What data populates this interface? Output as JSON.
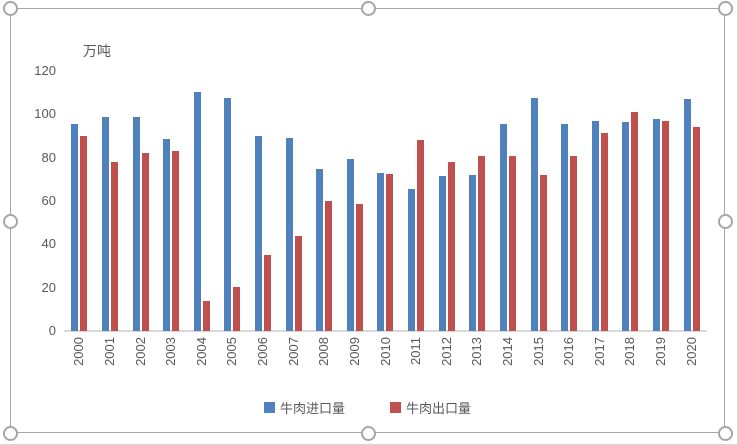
{
  "chart": {
    "unit_label": "万吨",
    "y_ticks": [
      120,
      100,
      80,
      60,
      40,
      20,
      0
    ],
    "colors": {
      "import_bar": "#4F81BD",
      "export_bar": "#C0504D",
      "text": "#595959",
      "frame_border": "#A6A6A6",
      "baseline": "#D9D9D9"
    }
  },
  "chart_data": {
    "type": "bar",
    "title": "",
    "xlabel": "",
    "ylabel": "万吨",
    "ylim": [
      0,
      120
    ],
    "grid": false,
    "legend_position": "bottom",
    "categories": [
      "2000",
      "2001",
      "2002",
      "2003",
      "2004",
      "2005",
      "2006",
      "2007",
      "2008",
      "2009",
      "2010",
      "2011",
      "2012",
      "2013",
      "2014",
      "2015",
      "2016",
      "2017",
      "2018",
      "2019",
      "2020"
    ],
    "series": [
      {
        "name": "牛肉进口量",
        "color": "#4F81BD",
        "values": [
          95.5,
          99,
          99,
          88.5,
          110.5,
          107.5,
          90,
          89,
          75,
          79.5,
          73,
          65.5,
          71.5,
          72,
          95.5,
          107.5,
          95.5,
          97,
          96.5,
          98,
          107
        ]
      },
      {
        "name": "牛肉出口量",
        "color": "#C0504D",
        "values": [
          90,
          78,
          82,
          83,
          14,
          20.5,
          35,
          44,
          60,
          58.5,
          72.5,
          88,
          78,
          81,
          81,
          72,
          81,
          91.5,
          101,
          97,
          94
        ]
      }
    ]
  }
}
